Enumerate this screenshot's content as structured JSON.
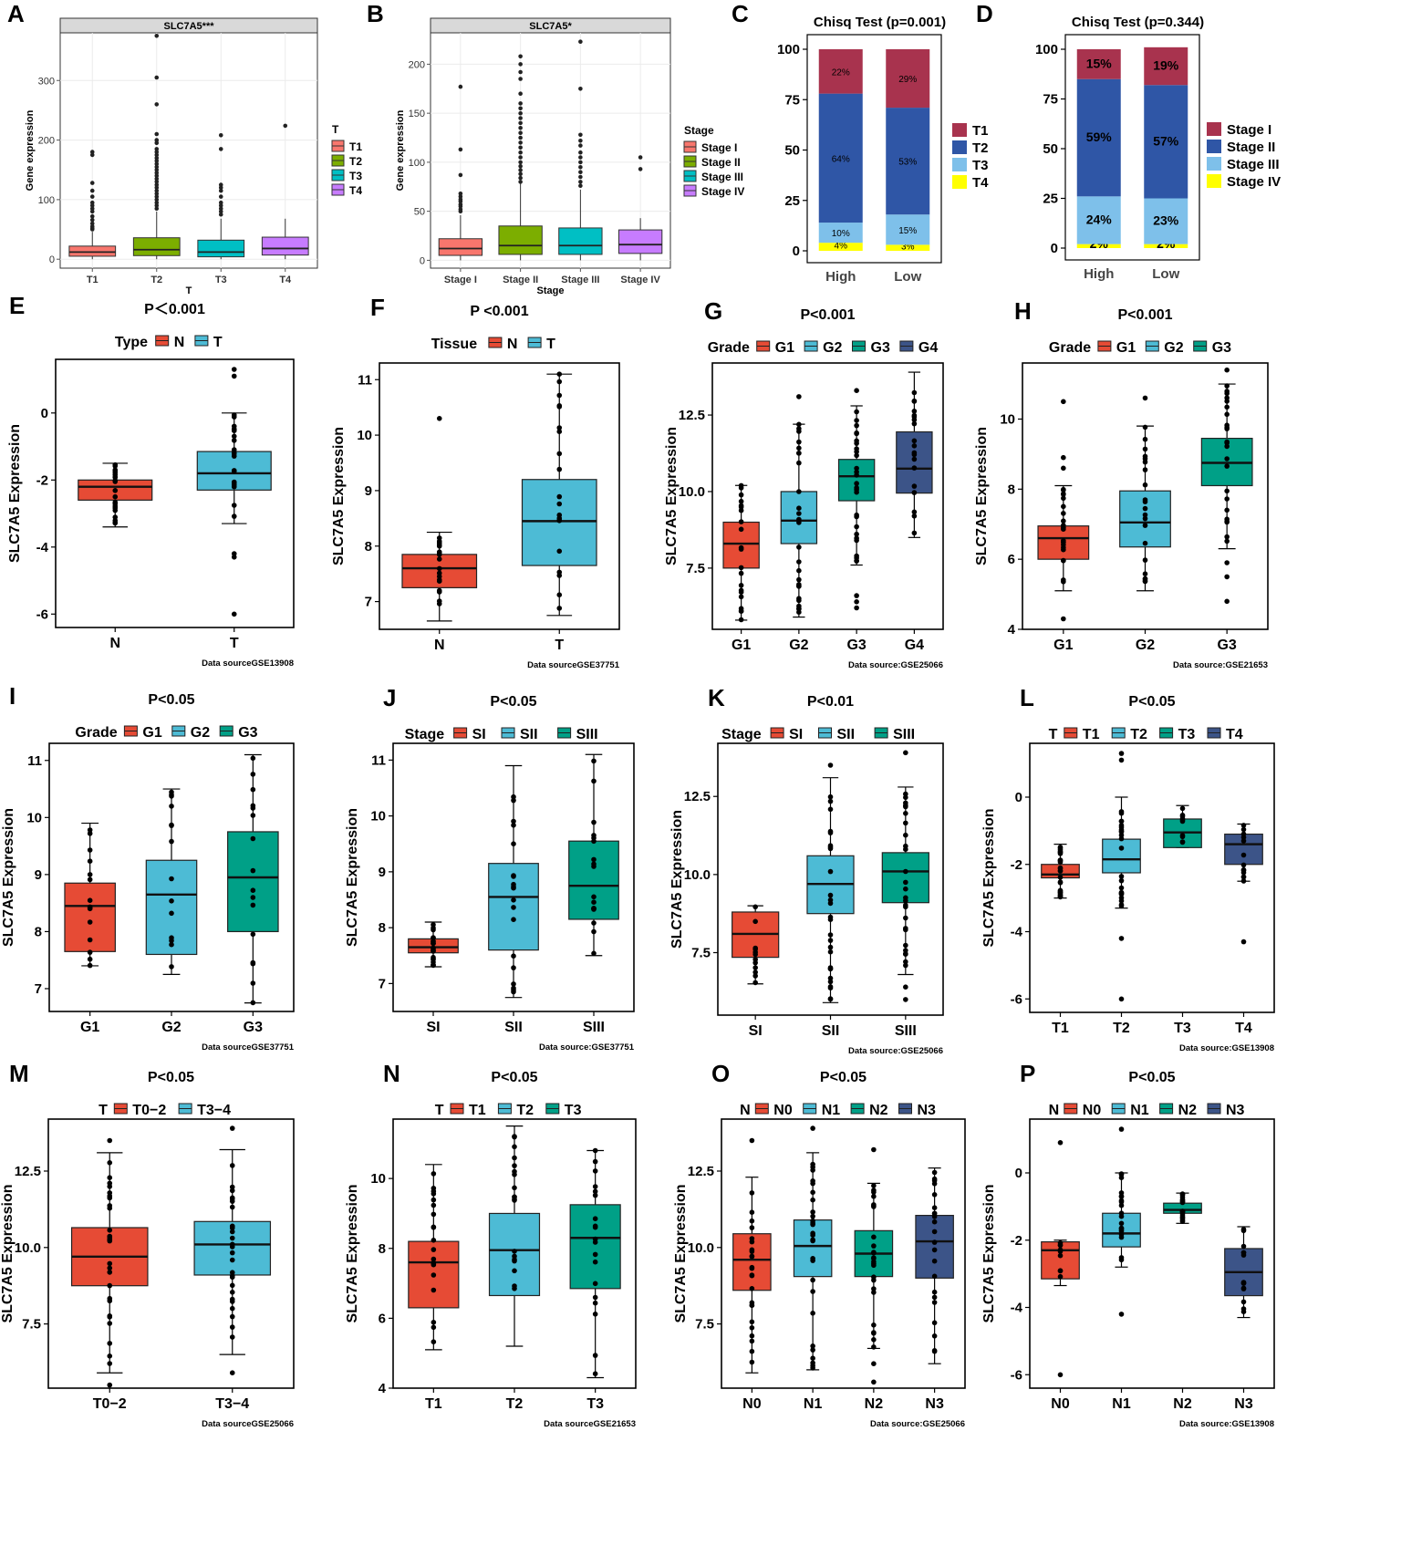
{
  "colors": {
    "red": "#E64B35",
    "blue": "#4DBBD5",
    "green": "#00A087",
    "navy": "#3C5488",
    "ggred": "#F8766D",
    "ggolive": "#7CAE00",
    "ggcyan": "#00BFC4",
    "ggviolet": "#C77CFF",
    "bar_maroon": "#A8334E",
    "bar_blue": "#2F56A6",
    "bar_light": "#7EC0EA",
    "bar_yellow": "#FFFF00",
    "facet_strip": "#d9d9d9",
    "panel_grid": "#ebebeb"
  },
  "chart_data": [
    {
      "id": "A",
      "panel": "A",
      "type": "box",
      "style": "gg",
      "strip": "SLC7A5***",
      "xlabel": "T",
      "ylabel": "Gene expression",
      "ylim": [
        -15,
        380
      ],
      "yticks": [
        0,
        100,
        200,
        300
      ],
      "legend_title": "T",
      "categories": [
        "T1",
        "T2",
        "T3",
        "T4"
      ],
      "boxes": [
        {
          "name": "T1",
          "q1": 5,
          "med": 12,
          "q3": 22,
          "lo": 0,
          "hi": 46,
          "outliers": [
            180,
            175,
            128,
            115,
            105,
            95,
            90,
            85,
            80,
            72,
            66,
            60,
            55,
            52,
            50
          ]
        },
        {
          "name": "T2",
          "q1": 6,
          "med": 16,
          "q3": 36,
          "lo": 0,
          "hi": 80,
          "outliers": [
            375,
            305,
            260,
            210,
            200,
            195,
            185,
            180,
            175,
            170,
            165,
            160,
            155,
            150,
            145,
            140,
            135,
            130,
            125,
            120,
            115,
            110,
            105,
            100,
            95,
            90,
            85
          ]
        },
        {
          "name": "T3",
          "q1": 4,
          "med": 12,
          "q3": 32,
          "lo": 0,
          "hi": 68,
          "outliers": [
            208,
            185,
            125,
            120,
            115,
            105,
            95,
            90,
            85,
            80,
            75
          ]
        },
        {
          "name": "T4",
          "q1": 7,
          "med": 18,
          "q3": 37,
          "lo": 0,
          "hi": 68,
          "outliers": [
            224
          ]
        }
      ]
    },
    {
      "id": "B",
      "panel": "B",
      "type": "box",
      "style": "gg",
      "strip": "SLC7A5*",
      "xlabel": "Stage",
      "ylabel": "Gene expression",
      "ylim": [
        -8,
        232
      ],
      "yticks": [
        0,
        50,
        100,
        150,
        200
      ],
      "legend_title": "Stage",
      "categories": [
        "Stage I",
        "Stage II",
        "Stage III",
        "Stage IV"
      ],
      "boxes": [
        {
          "name": "Stage I",
          "q1": 5,
          "med": 12,
          "q3": 22,
          "lo": 0,
          "hi": 46,
          "outliers": [
            177,
            113,
            87,
            68,
            65,
            62,
            60,
            57,
            55,
            52,
            50
          ]
        },
        {
          "name": "Stage II",
          "q1": 6,
          "med": 15,
          "q3": 35,
          "lo": 0,
          "hi": 78,
          "outliers": [
            208,
            200,
            192,
            185,
            170,
            160,
            155,
            150,
            145,
            140,
            135,
            130,
            125,
            120,
            115,
            110,
            105,
            100,
            96,
            92,
            88,
            84,
            80
          ]
        },
        {
          "name": "Stage III",
          "q1": 6,
          "med": 15,
          "q3": 33,
          "lo": 0,
          "hi": 72,
          "outliers": [
            223,
            175,
            128,
            122,
            117,
            110,
            105,
            100,
            95,
            90,
            85,
            80,
            76
          ]
        },
        {
          "name": "Stage IV",
          "q1": 7,
          "med": 16,
          "q3": 31,
          "lo": 0,
          "hi": 43,
          "outliers": [
            105,
            93
          ]
        }
      ]
    },
    {
      "id": "C",
      "panel": "C",
      "type": "stacked_bar",
      "title": "Chisq Test (p=0.001)",
      "categories": [
        "High",
        "Low"
      ],
      "yticks": [
        0,
        25,
        50,
        75,
        100
      ],
      "legend": [
        "T1",
        "T2",
        "T3",
        "T4"
      ],
      "label_size": 10,
      "series": [
        {
          "name": "T4",
          "values": [
            4,
            3
          ],
          "labels": [
            "4%",
            "3%"
          ]
        },
        {
          "name": "T3",
          "values": [
            10,
            15
          ],
          "labels": [
            "10%",
            "15%"
          ]
        },
        {
          "name": "T2",
          "values": [
            64,
            53
          ],
          "labels": [
            "64%",
            "53%"
          ]
        },
        {
          "name": "T1",
          "values": [
            22,
            29
          ],
          "labels": [
            "22%",
            "29%"
          ]
        }
      ]
    },
    {
      "id": "D",
      "panel": "D",
      "type": "stacked_bar",
      "title": "Chisq Test (p=0.344)",
      "categories": [
        "High",
        "Low"
      ],
      "yticks": [
        0,
        25,
        50,
        75,
        100
      ],
      "legend": [
        "Stage I",
        "Stage II",
        "Stage III",
        "Stage IV"
      ],
      "label_size": 14,
      "series": [
        {
          "name": "Stage IV",
          "values": [
            2,
            2
          ],
          "labels": [
            "2%",
            "2%"
          ]
        },
        {
          "name": "Stage III",
          "values": [
            24,
            23
          ],
          "labels": [
            "24%",
            "23%"
          ]
        },
        {
          "name": "Stage II",
          "values": [
            59,
            57
          ],
          "labels": [
            "59%",
            "57%"
          ]
        },
        {
          "name": "Stage I",
          "values": [
            15,
            19
          ],
          "labels": [
            "15%",
            "19%"
          ]
        }
      ]
    },
    {
      "id": "E",
      "panel": "E",
      "type": "box",
      "style": "bw",
      "title": "P＜0.001",
      "legend_title": "Type",
      "ylabel": "SLC7A5 Expression",
      "source": "Data sourceGSE13908",
      "ylim": [
        -6.4,
        1.6
      ],
      "yticks": [
        0,
        -2,
        -4,
        -6
      ],
      "categories": [
        "N",
        "T"
      ],
      "boxes": [
        {
          "name": "N",
          "q1": -2.6,
          "med": -2.2,
          "q3": -2.0,
          "lo": -3.4,
          "hi": -1.5
        },
        {
          "name": "T",
          "q1": -2.3,
          "med": -1.8,
          "q3": -1.15,
          "lo": -3.3,
          "hi": 0.0,
          "outliers": [
            1.3,
            1.1,
            -4.2,
            -4.3,
            -6.0
          ]
        }
      ]
    },
    {
      "id": "F",
      "panel": "F",
      "type": "box",
      "style": "bw",
      "title": "P <0.001",
      "legend_title": "Tissue",
      "ylabel": "SLC7A5 Expression",
      "source": "Data sourceGSE37751",
      "ylim": [
        6.5,
        11.3
      ],
      "yticks": [
        7,
        8,
        9,
        10,
        11
      ],
      "categories": [
        "N",
        "T"
      ],
      "boxes": [
        {
          "name": "N",
          "q1": 7.25,
          "med": 7.6,
          "q3": 7.85,
          "lo": 6.65,
          "hi": 8.25,
          "outliers": [
            10.3
          ]
        },
        {
          "name": "T",
          "q1": 7.65,
          "med": 8.45,
          "q3": 9.2,
          "lo": 6.75,
          "hi": 11.1
        }
      ]
    },
    {
      "id": "G",
      "panel": "G",
      "type": "box",
      "style": "bw",
      "title": "P<0.001",
      "legend_title": "Grade",
      "ylabel": "SLC7A5 Expression",
      "source": "Data source:GSE25066",
      "ylim": [
        5.5,
        14.2
      ],
      "yticks": [
        7.5,
        10.0,
        12.5
      ],
      "categories": [
        "G1",
        "G2",
        "G3",
        "G4"
      ],
      "boxes": [
        {
          "name": "G1",
          "q1": 7.5,
          "med": 8.3,
          "q3": 9.0,
          "lo": 5.8,
          "hi": 10.2
        },
        {
          "name": "G2",
          "q1": 8.3,
          "med": 9.05,
          "q3": 10.0,
          "lo": 5.9,
          "hi": 12.2,
          "outliers": [
            13.1
          ]
        },
        {
          "name": "G3",
          "q1": 9.7,
          "med": 10.5,
          "q3": 11.05,
          "lo": 7.6,
          "hi": 12.8,
          "outliers": [
            13.3,
            6.6,
            6.4,
            6.2
          ]
        },
        {
          "name": "G4",
          "q1": 9.95,
          "med": 10.75,
          "q3": 11.95,
          "lo": 8.5,
          "hi": 13.9
        }
      ]
    },
    {
      "id": "H",
      "panel": "H",
      "type": "box",
      "style": "bw",
      "title": "P<0.001",
      "legend_title": "Grade",
      "ylabel": "SLC7A5 Expression",
      "source": "Data source:GSE21653",
      "ylim": [
        4,
        11.6
      ],
      "yticks": [
        4,
        6,
        8,
        10
      ],
      "categories": [
        "G1",
        "G2",
        "G3"
      ],
      "boxes": [
        {
          "name": "G1",
          "q1": 6.0,
          "med": 6.6,
          "q3": 6.95,
          "lo": 5.1,
          "hi": 8.1,
          "outliers": [
            10.5,
            8.9,
            8.6,
            4.3
          ]
        },
        {
          "name": "G2",
          "q1": 6.35,
          "med": 7.05,
          "q3": 7.95,
          "lo": 5.1,
          "hi": 9.8,
          "outliers": [
            10.6
          ]
        },
        {
          "name": "G3",
          "q1": 8.1,
          "med": 8.75,
          "q3": 9.45,
          "lo": 6.3,
          "hi": 11.0,
          "outliers": [
            11.4,
            5.9,
            5.5,
            4.8
          ]
        }
      ]
    },
    {
      "id": "I",
      "panel": "I",
      "type": "box",
      "style": "bw",
      "title": "P<0.05",
      "legend_title": "Grade",
      "ylabel": "SLC7A5 Expression",
      "source": "Data sourceGSE37751",
      "ylim": [
        6.6,
        11.3
      ],
      "yticks": [
        7,
        8,
        9,
        10,
        11
      ],
      "categories": [
        "G1",
        "G2",
        "G3"
      ],
      "boxes": [
        {
          "name": "G1",
          "q1": 7.65,
          "med": 8.45,
          "q3": 8.85,
          "lo": 7.4,
          "hi": 9.9
        },
        {
          "name": "G2",
          "q1": 7.6,
          "med": 8.65,
          "q3": 9.25,
          "lo": 7.25,
          "hi": 10.5
        },
        {
          "name": "G3",
          "q1": 8.0,
          "med": 8.95,
          "q3": 9.75,
          "lo": 6.75,
          "hi": 11.1
        }
      ]
    },
    {
      "id": "J",
      "panel": "J",
      "type": "box",
      "style": "bw",
      "title": "P<0.05",
      "legend_title": "Stage",
      "ylabel": "SLC7A5 Expression",
      "source": "Data source:GSE37751",
      "ylim": [
        6.5,
        11.3
      ],
      "yticks": [
        7,
        8,
        9,
        10,
        11
      ],
      "categories": [
        "SI",
        "SII",
        "SIII"
      ],
      "boxes": [
        {
          "name": "SI",
          "q1": 7.55,
          "med": 7.65,
          "q3": 7.8,
          "lo": 7.3,
          "hi": 8.1
        },
        {
          "name": "SII",
          "q1": 7.6,
          "med": 8.55,
          "q3": 9.15,
          "lo": 6.75,
          "hi": 10.9
        },
        {
          "name": "SIII",
          "q1": 8.15,
          "med": 8.75,
          "q3": 9.55,
          "lo": 7.5,
          "hi": 11.1
        }
      ]
    },
    {
      "id": "K",
      "panel": "K",
      "type": "box",
      "style": "bw",
      "title": "P<0.01",
      "legend_title": "Stage",
      "ylabel": "SLC7A5 Expression",
      "source": "Data source:GSE25066",
      "ylim": [
        5.5,
        14.2
      ],
      "yticks": [
        7.5,
        10.0,
        12.5
      ],
      "categories": [
        "SI",
        "SII",
        "SIII"
      ],
      "boxes": [
        {
          "name": "SI",
          "q1": 7.35,
          "med": 8.1,
          "q3": 8.8,
          "lo": 6.5,
          "hi": 9.0
        },
        {
          "name": "SII",
          "q1": 8.75,
          "med": 9.7,
          "q3": 10.6,
          "lo": 5.9,
          "hi": 13.1,
          "outliers": [
            13.5
          ]
        },
        {
          "name": "SIII",
          "q1": 9.1,
          "med": 10.1,
          "q3": 10.7,
          "lo": 6.8,
          "hi": 12.8,
          "outliers": [
            13.9,
            6.4,
            6.0
          ]
        }
      ]
    },
    {
      "id": "L",
      "panel": "L",
      "type": "box",
      "style": "bw",
      "title": "P<0.05",
      "legend_title": "T",
      "ylabel": "SLC7A5 Expression",
      "source": "Data source:GSE13908",
      "ylim": [
        -6.4,
        1.6
      ],
      "yticks": [
        0,
        -2,
        -4,
        -6
      ],
      "categories": [
        "T1",
        "T2",
        "T3",
        "T4"
      ],
      "boxes": [
        {
          "name": "T1",
          "q1": -2.4,
          "med": -2.3,
          "q3": -2.0,
          "lo": -3.0,
          "hi": -1.4
        },
        {
          "name": "T2",
          "q1": -2.25,
          "med": -1.85,
          "q3": -1.25,
          "lo": -3.3,
          "hi": 0.0,
          "outliers": [
            1.3,
            1.1,
            -4.2,
            -6.0
          ]
        },
        {
          "name": "T3",
          "q1": -1.5,
          "med": -1.05,
          "q3": -0.65,
          "lo": -1.5,
          "hi": -0.25
        },
        {
          "name": "T4",
          "q1": -2.0,
          "med": -1.4,
          "q3": -1.1,
          "lo": -2.5,
          "hi": -0.8,
          "outliers": [
            -4.3
          ]
        }
      ]
    },
    {
      "id": "M",
      "panel": "M",
      "type": "box",
      "style": "bw",
      "title": "P<0.05",
      "legend_title": "T",
      "ylabel": "SLC7A5 Expression",
      "source": "Data sourceGSE25066",
      "ylim": [
        5.4,
        14.2
      ],
      "yticks": [
        7.5,
        10.0,
        12.5
      ],
      "categories": [
        "T0−2",
        "T3−4"
      ],
      "boxes": [
        {
          "name": "T0−2",
          "q1": 8.75,
          "med": 9.7,
          "q3": 10.65,
          "lo": 5.9,
          "hi": 13.1,
          "outliers": [
            13.5,
            5.5
          ]
        },
        {
          "name": "T3−4",
          "q1": 9.1,
          "med": 10.1,
          "q3": 10.85,
          "lo": 6.5,
          "hi": 13.2,
          "outliers": [
            13.9,
            5.9
          ]
        }
      ]
    },
    {
      "id": "N",
      "panel": "N",
      "type": "box",
      "style": "bw",
      "title": "P<0.05",
      "legend_title": "T",
      "ylabel": "SLC7A5 Expression",
      "source": "Data sourceGSE21653",
      "ylim": [
        4,
        11.7
      ],
      "yticks": [
        4,
        6,
        8,
        10
      ],
      "categories": [
        "T1",
        "T2",
        "T3"
      ],
      "boxes": [
        {
          "name": "T1",
          "q1": 6.3,
          "med": 7.6,
          "q3": 8.2,
          "lo": 5.1,
          "hi": 10.4
        },
        {
          "name": "T2",
          "q1": 6.65,
          "med": 7.95,
          "q3": 9.0,
          "lo": 5.2,
          "hi": 11.5
        },
        {
          "name": "T3",
          "q1": 6.85,
          "med": 8.3,
          "q3": 9.25,
          "lo": 4.3,
          "hi": 10.8
        }
      ]
    },
    {
      "id": "O",
      "panel": "O",
      "type": "box",
      "style": "bw",
      "title": "P<0.05",
      "legend_title": "N",
      "ylabel": "SLC7A5 Expression",
      "source": "Data source:GSE25066",
      "ylim": [
        5.4,
        14.2
      ],
      "yticks": [
        7.5,
        10.0,
        12.5
      ],
      "categories": [
        "N0",
        "N1",
        "N2",
        "N3"
      ],
      "boxes": [
        {
          "name": "N0",
          "q1": 8.6,
          "med": 9.6,
          "q3": 10.45,
          "lo": 5.9,
          "hi": 12.3,
          "outliers": [
            13.5
          ]
        },
        {
          "name": "N1",
          "q1": 9.05,
          "med": 10.05,
          "q3": 10.9,
          "lo": 6.0,
          "hi": 13.1,
          "outliers": [
            13.9
          ]
        },
        {
          "name": "N2",
          "q1": 9.05,
          "med": 9.8,
          "q3": 10.55,
          "lo": 6.7,
          "hi": 12.1,
          "outliers": [
            13.2,
            6.2,
            5.6
          ]
        },
        {
          "name": "N3",
          "q1": 9.0,
          "med": 10.2,
          "q3": 11.05,
          "lo": 6.2,
          "hi": 12.6
        }
      ]
    },
    {
      "id": "P",
      "panel": "P",
      "type": "box",
      "style": "bw",
      "title": "P<0.05",
      "legend_title": "N",
      "ylabel": "SLC7A5 Expression",
      "source": "Data source:GSE13908",
      "ylim": [
        -6.4,
        1.6
      ],
      "yticks": [
        0,
        -2,
        -4,
        -6
      ],
      "categories": [
        "N0",
        "N1",
        "N2",
        "N3"
      ],
      "boxes": [
        {
          "name": "N0",
          "q1": -3.15,
          "med": -2.3,
          "q3": -2.05,
          "lo": -3.35,
          "hi": -2.0,
          "outliers": [
            0.9,
            -6.0
          ]
        },
        {
          "name": "N1",
          "q1": -2.2,
          "med": -1.8,
          "q3": -1.2,
          "lo": -2.8,
          "hi": 0.0,
          "outliers": [
            1.3,
            -4.2
          ]
        },
        {
          "name": "N2",
          "q1": -1.2,
          "med": -1.1,
          "q3": -0.9,
          "lo": -1.5,
          "hi": -0.6
        },
        {
          "name": "N3",
          "q1": -3.65,
          "med": -2.95,
          "q3": -2.25,
          "lo": -4.3,
          "hi": -1.6
        }
      ]
    }
  ]
}
